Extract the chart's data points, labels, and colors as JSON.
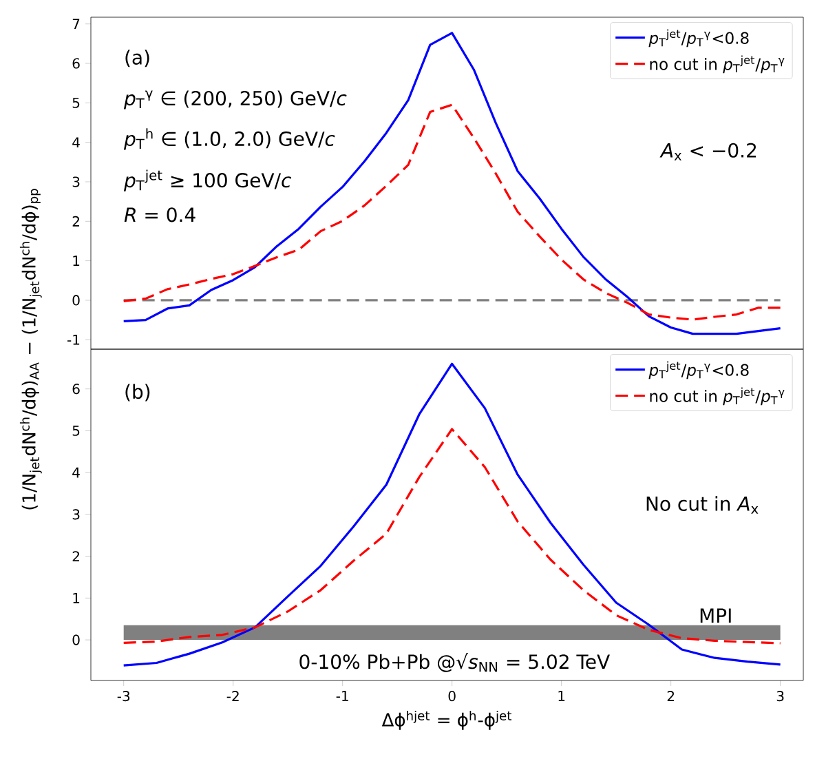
{
  "chart_data": [
    {
      "type": "line",
      "ylabel": "(1/N$_{jet}$dN$^{ch}$/dϕ)$_{AA}$ − (1/N$_{jet}$dN$^{ch}$/dϕ)$_{pp}$",
      "annotations": [
        "(a)",
        "*p*$_{T}$$^{γ}$ ∈ (200, 250) GeV/*c*",
        "*p*$_{T}$$^{h}$ ∈ (1.0, 2.0) GeV/*c*",
        "*p*$_{T}$$^{jet}$ ≥ 100 GeV/*c*",
        "*R* = 0.4",
        "*A*$_{x}$ < −0.2"
      ],
      "x": [
        -3.0,
        -2.8,
        -2.6,
        -2.4,
        -2.2,
        -2.0,
        -1.8,
        -1.6,
        -1.4,
        -1.2,
        -1.0,
        -0.8,
        -0.6,
        -0.4,
        -0.2,
        0.0,
        0.2,
        0.4,
        0.6,
        0.8,
        1.0,
        1.2,
        1.4,
        1.6,
        1.8,
        2.0,
        2.2,
        2.4,
        2.6,
        2.8,
        3.0
      ],
      "series": [
        {
          "name": "*p*$_{T}$$^{jet}$/*p*$_{T}$$^{γ}$<0.8",
          "color": "#0000ff",
          "line_style": "solid",
          "values": [
            -0.53,
            -0.5,
            -0.21,
            -0.13,
            0.26,
            0.51,
            0.84,
            1.37,
            1.81,
            2.37,
            2.87,
            3.52,
            4.24,
            5.07,
            6.47,
            6.77,
            5.84,
            4.49,
            3.27,
            2.58,
            1.81,
            1.1,
            0.54,
            0.09,
            -0.41,
            -0.69,
            -0.85,
            -0.85,
            -0.85,
            -0.78,
            -0.71
          ]
        },
        {
          "name": "no cut in *p*$_{T}$$^{jet}$/*p*$_{T}$$^{γ}$",
          "color": "#ff0000",
          "line_style": "dashed",
          "values": [
            -0.02,
            0.04,
            0.28,
            0.4,
            0.54,
            0.66,
            0.87,
            1.09,
            1.28,
            1.75,
            2.01,
            2.4,
            2.9,
            3.43,
            4.77,
            4.95,
            4.11,
            3.21,
            2.24,
            1.62,
            1.03,
            0.53,
            0.19,
            -0.06,
            -0.36,
            -0.44,
            -0.49,
            -0.42,
            -0.36,
            -0.19,
            -0.19
          ]
        }
      ],
      "ref_lines": [
        {
          "axis": "y",
          "value": 0,
          "color": "#808080",
          "line_style": "dashed"
        }
      ],
      "xlim": [
        -3.3,
        3.21
      ],
      "ylim": [
        -1.24,
        7.17
      ],
      "yticks": [
        -1,
        0,
        1,
        2,
        3,
        4,
        5,
        6,
        7
      ],
      "tick_labels": "y",
      "legend": "top right"
    },
    {
      "type": "line",
      "xlabel": "Δϕ$^{hjet}$ = ϕ$^{h}$-ϕ$^{jet}$",
      "annotations": [
        "(b)",
        "No cut in *A*$_{x}$",
        "0-10% Pb+Pb @√*s*$_{NN}$ = 5.02 TeV"
      ],
      "x": [
        -3.0,
        -2.7,
        -2.4,
        -2.1,
        -1.8,
        -1.5,
        -1.2,
        -0.9,
        -0.6,
        -0.3,
        0.0,
        0.3,
        0.6,
        0.9,
        1.2,
        1.5,
        1.8,
        2.1,
        2.4,
        2.7,
        3.0
      ],
      "series": [
        {
          "name": "*p*$_{T}$$^{jet}$/*p*$_{T}$$^{γ}$<0.8",
          "color": "#0000ff",
          "line_style": "solid",
          "values": [
            -0.61,
            -0.55,
            -0.33,
            -0.06,
            0.3,
            1.04,
            1.77,
            2.71,
            3.71,
            5.39,
            6.6,
            5.54,
            3.95,
            2.8,
            1.8,
            0.89,
            0.36,
            -0.23,
            -0.43,
            -0.52,
            -0.59
          ]
        },
        {
          "name": "no cut in *p*$_{T}$$^{jet}$/*p*$_{T}$$^{γ}$",
          "color": "#ff0000",
          "line_style": "dashed",
          "values": [
            -0.07,
            -0.04,
            0.07,
            0.12,
            0.3,
            0.68,
            1.19,
            1.89,
            2.54,
            3.89,
            5.04,
            4.13,
            2.83,
            1.92,
            1.19,
            0.59,
            0.24,
            0.04,
            -0.02,
            -0.05,
            -0.08
          ]
        }
      ],
      "bands": [
        {
          "axis": "y",
          "from": 0,
          "to": 0.35,
          "label": "MPI",
          "color": "#808080"
        }
      ],
      "xlim": [
        -3.3,
        3.21
      ],
      "ylim": [
        -0.97,
        6.95
      ],
      "xticks": [
        -3,
        -2,
        -1,
        0,
        1,
        2,
        3
      ],
      "yticks": [
        0,
        1,
        2,
        3,
        4,
        5,
        6
      ],
      "legend": "top right"
    }
  ]
}
